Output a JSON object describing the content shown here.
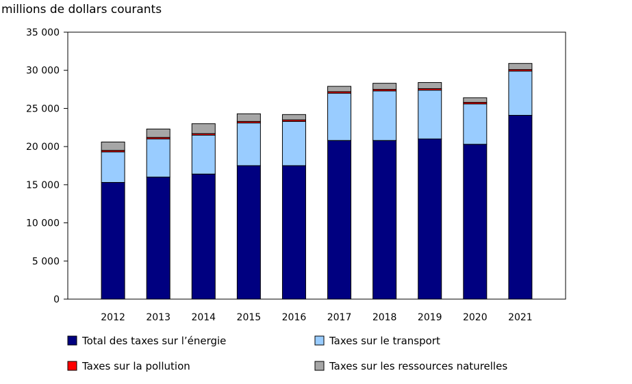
{
  "chart_data": {
    "type": "bar",
    "stacked": true,
    "title": "",
    "xlabel": "",
    "ylabel": "millions de dollars courants",
    "ylim": [
      0,
      35000
    ],
    "yticks": [
      0,
      5000,
      10000,
      15000,
      20000,
      25000,
      30000,
      35000
    ],
    "ytick_labels": [
      "0",
      "5 000",
      "10 000",
      "15 000",
      "20 000",
      "25 000",
      "30 000",
      "35 000"
    ],
    "categories": [
      "2012",
      "2013",
      "2014",
      "2015",
      "2016",
      "2017",
      "2018",
      "2019",
      "2020",
      "2021"
    ],
    "grid": false,
    "legend_position": "bottom",
    "series": [
      {
        "name": "Total des taxes sur l’énergie",
        "color": "#000080",
        "values": [
          15300,
          16000,
          16400,
          17500,
          17500,
          20800,
          20800,
          21000,
          20300,
          24100
        ]
      },
      {
        "name": "Taxes sur le transport",
        "color": "#99ccff",
        "values": [
          4000,
          5000,
          5100,
          5600,
          5800,
          6200,
          6500,
          6400,
          5300,
          5800
        ]
      },
      {
        "name": "Taxes sur la pollution",
        "color": "#ff0000",
        "values": [
          200,
          200,
          200,
          200,
          200,
          200,
          200,
          200,
          200,
          200
        ]
      },
      {
        "name": "Taxes sur les ressources naturelles",
        "color": "#a6a6a6",
        "values": [
          1100,
          1100,
          1300,
          1000,
          700,
          700,
          800,
          800,
          600,
          800
        ]
      }
    ]
  }
}
